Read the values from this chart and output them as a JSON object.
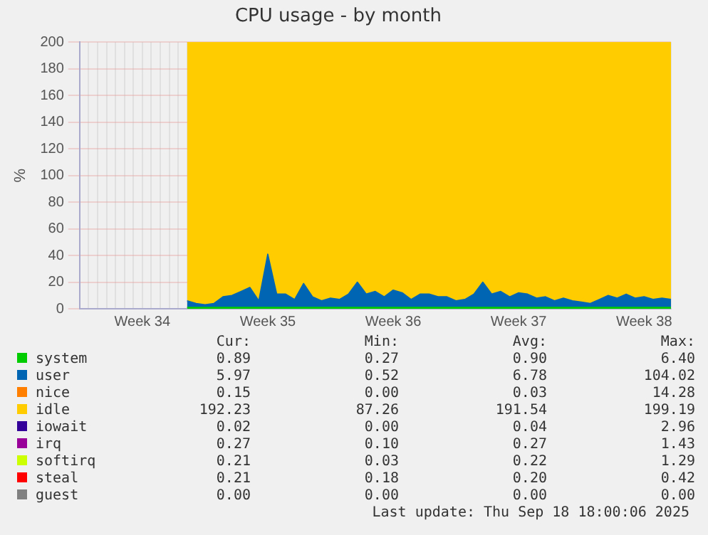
{
  "chart_data": {
    "type": "area",
    "stacked": true,
    "title": "CPU usage - by month",
    "ylabel": "%",
    "ylim": [
      0,
      200
    ],
    "yticks": [
      0,
      20,
      40,
      60,
      80,
      100,
      120,
      140,
      160,
      180,
      200
    ],
    "grid": true,
    "legend": "bottom",
    "categories": [
      null,
      null,
      null,
      null,
      null,
      null,
      null,
      "Week 34",
      null,
      null,
      null,
      null,
      null,
      null,
      null,
      null,
      null,
      null,
      null,
      null,
      null,
      "Week 35",
      null,
      null,
      null,
      null,
      null,
      null,
      null,
      null,
      null,
      null,
      null,
      null,
      null,
      "Week 36",
      null,
      null,
      null,
      null,
      null,
      null,
      null,
      null,
      null,
      null,
      null,
      null,
      null,
      "Week 37",
      null,
      null,
      null,
      null,
      null,
      null,
      null,
      null,
      null,
      null,
      null,
      null,
      null,
      "Week 38",
      null,
      null,
      null
    ],
    "series": [
      {
        "name": "system",
        "color": "#00cc00",
        "values": [
          null,
          null,
          null,
          null,
          null,
          null,
          null,
          null,
          null,
          null,
          null,
          null,
          1,
          1,
          1,
          1,
          1,
          1,
          1,
          1,
          1,
          1,
          1,
          1,
          1,
          1,
          1,
          1,
          1,
          1,
          1,
          1,
          1,
          1,
          1,
          1,
          1,
          1,
          1,
          1,
          1,
          1,
          1,
          1,
          1,
          1,
          1,
          1,
          1,
          1,
          1,
          1,
          1,
          1,
          1,
          1,
          1,
          1,
          1,
          1,
          1,
          1,
          1,
          1,
          1,
          1,
          1
        ]
      },
      {
        "name": "user",
        "color": "#0066b3",
        "values": [
          null,
          null,
          null,
          null,
          null,
          null,
          null,
          null,
          null,
          null,
          null,
          null,
          5,
          3,
          2,
          3,
          8,
          9,
          12,
          15,
          5,
          40,
          10,
          10,
          6,
          18,
          8,
          5,
          7,
          6,
          10,
          19,
          10,
          12,
          8,
          13,
          11,
          6,
          10,
          10,
          8,
          8,
          5,
          6,
          10,
          19,
          10,
          12,
          8,
          11,
          10,
          7,
          8,
          5,
          7,
          5,
          4,
          3,
          6,
          9,
          7,
          10,
          7,
          8,
          6,
          7,
          6
        ]
      },
      {
        "name": "nice",
        "color": "#ff8000",
        "values": [
          null,
          null,
          null,
          null,
          null,
          null,
          null,
          null,
          null,
          null,
          null,
          null,
          null,
          null,
          null,
          null,
          null,
          null,
          null,
          null,
          null,
          null,
          null,
          null,
          null,
          null,
          null,
          null,
          null,
          null,
          null,
          null,
          null,
          null,
          null,
          null,
          null,
          null,
          null,
          null,
          null,
          null,
          null,
          null,
          null,
          null,
          null,
          null,
          null,
          null,
          null,
          null,
          null,
          null,
          null,
          null,
          null,
          null,
          null,
          null,
          null,
          null,
          null,
          null,
          null,
          null,
          null
        ]
      },
      {
        "name": "idle",
        "color": "#ffcc00",
        "values": [
          null,
          null,
          null,
          null,
          null,
          null,
          null,
          null,
          null,
          null,
          null,
          null,
          194,
          196,
          197,
          196,
          191,
          190,
          187,
          184,
          194,
          159,
          189,
          189,
          193,
          181,
          191,
          194,
          192,
          193,
          189,
          180,
          189,
          187,
          191,
          186,
          188,
          193,
          189,
          189,
          191,
          191,
          194,
          193,
          189,
          180,
          189,
          187,
          191,
          188,
          189,
          192,
          191,
          194,
          192,
          194,
          195,
          196,
          193,
          190,
          192,
          189,
          192,
          191,
          193,
          192,
          193
        ]
      },
      {
        "name": "iowait",
        "color": "#330099",
        "values": [
          null,
          null,
          null,
          null,
          null,
          null,
          null,
          null,
          null,
          null,
          null,
          null,
          null,
          null,
          null,
          null,
          null,
          null,
          null,
          null,
          null,
          null,
          null,
          null,
          null,
          null,
          null,
          null,
          null,
          null,
          null,
          null,
          null,
          null,
          null,
          null,
          null,
          null,
          null,
          null,
          null,
          null,
          null,
          null,
          null,
          null,
          null,
          null,
          null,
          null,
          null,
          null,
          null,
          null,
          null,
          null,
          null,
          null,
          null,
          null,
          null,
          null,
          null,
          null,
          null,
          null,
          null
        ]
      },
      {
        "name": "irq",
        "color": "#990099",
        "values": [
          null,
          null,
          null,
          null,
          null,
          null,
          null,
          null,
          null,
          null,
          null,
          null,
          null,
          null,
          null,
          null,
          null,
          null,
          null,
          null,
          null,
          null,
          null,
          null,
          null,
          null,
          null,
          null,
          null,
          null,
          null,
          null,
          null,
          null,
          null,
          null,
          null,
          null,
          null,
          null,
          null,
          null,
          null,
          null,
          null,
          null,
          null,
          null,
          null,
          null,
          null,
          null,
          null,
          null,
          null,
          null,
          null,
          null,
          null,
          null,
          null,
          null,
          null,
          null,
          null,
          null,
          null
        ]
      },
      {
        "name": "softirq",
        "color": "#ccff00",
        "values": [
          null,
          null,
          null,
          null,
          null,
          null,
          null,
          null,
          null,
          null,
          null,
          null,
          null,
          null,
          null,
          null,
          null,
          null,
          null,
          null,
          null,
          null,
          null,
          null,
          null,
          null,
          null,
          null,
          null,
          null,
          null,
          null,
          null,
          null,
          null,
          null,
          null,
          null,
          null,
          null,
          null,
          null,
          null,
          null,
          null,
          null,
          null,
          null,
          null,
          null,
          null,
          null,
          null,
          null,
          null,
          null,
          null,
          null,
          null,
          null,
          null,
          null,
          null,
          null,
          null,
          null,
          null
        ]
      },
      {
        "name": "steal",
        "color": "#ff0000",
        "values": [
          null,
          null,
          null,
          null,
          null,
          null,
          null,
          null,
          null,
          null,
          null,
          null,
          null,
          null,
          null,
          null,
          null,
          null,
          null,
          null,
          null,
          null,
          null,
          null,
          null,
          null,
          null,
          null,
          null,
          null,
          null,
          null,
          null,
          null,
          null,
          null,
          null,
          null,
          null,
          null,
          null,
          null,
          null,
          null,
          null,
          null,
          null,
          null,
          null,
          null,
          null,
          null,
          null,
          null,
          null,
          null,
          null,
          null,
          null,
          null,
          null,
          null,
          null,
          null,
          null,
          null,
          null
        ]
      },
      {
        "name": "guest",
        "color": "#808080",
        "values": [
          null,
          null,
          null,
          null,
          null,
          null,
          null,
          null,
          null,
          null,
          null,
          null,
          null,
          null,
          null,
          null,
          null,
          null,
          null,
          null,
          null,
          null,
          null,
          null,
          null,
          null,
          null,
          null,
          null,
          null,
          null,
          null,
          null,
          null,
          null,
          null,
          null,
          null,
          null,
          null,
          null,
          null,
          null,
          null,
          null,
          null,
          null,
          null,
          null,
          null,
          null,
          null,
          null,
          null,
          null,
          null,
          null,
          null,
          null,
          null,
          null,
          null,
          null,
          null,
          null,
          null,
          null
        ]
      }
    ],
    "annotations": [
      "Cur:",
      "Min:",
      "Avg:",
      "Max:",
      "0.89",
      "0.27",
      "0.90",
      "6.40",
      "5.97",
      "0.52",
      "6.78",
      "104.02",
      "0.15",
      "0.00",
      "0.03",
      "14.28",
      "192.23",
      "87.26",
      "191.54",
      "199.19",
      "0.02",
      "0.00",
      "0.04",
      "2.96",
      "0.27",
      "0.10",
      "0.27",
      "1.43",
      "0.21",
      "0.03",
      "0.22",
      "1.29",
      "0.21",
      "0.18",
      "0.20",
      "0.42",
      "0.00",
      "0.00",
      "0.00",
      "0.00",
      "Last update: Thu Sep 18 18:00:06 2025"
    ]
  }
}
